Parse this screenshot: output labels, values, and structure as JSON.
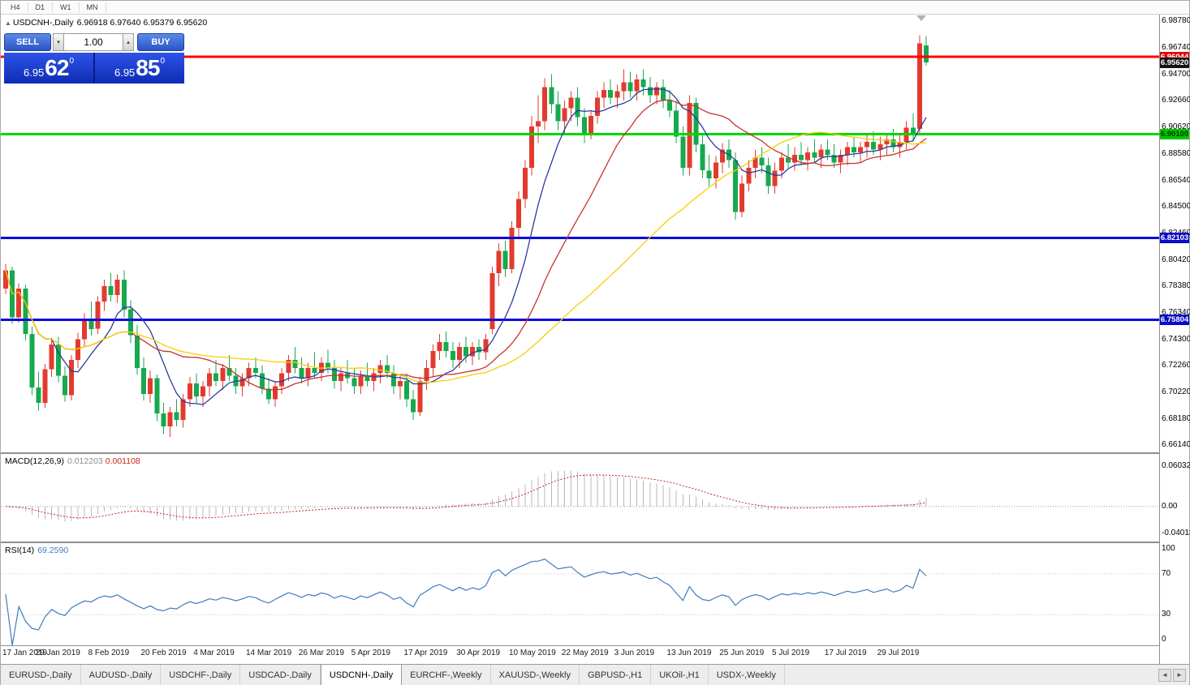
{
  "colors": {
    "up": "#e23b2e",
    "down": "#16a94f"
  },
  "period_bar": {
    "items": [
      "H4",
      "D1",
      "W1",
      "MN"
    ]
  },
  "chart_header": {
    "icon": "▲",
    "symbol": "USDCNH-,Daily",
    "ohlc": "6.96918 6.97640 6.95379 6.95620"
  },
  "trade_panel": {
    "sell_label": "SELL",
    "buy_label": "BUY",
    "volume": "1.00",
    "spin_down": "▾",
    "spin_up": "▴",
    "bid": {
      "prefix": "6.95",
      "big": "62",
      "sup": "0"
    },
    "ask": {
      "prefix": "6.95",
      "big": "85",
      "sup": "0"
    }
  },
  "chart_data": {
    "type": "candlestick",
    "symbol": "USDCNH-,Daily",
    "ohlc_header": {
      "open": "6.96918",
      "high": "6.97640",
      "low": "6.95379",
      "close": "6.95620"
    },
    "price_axis": {
      "min": 6.656,
      "max": 6.993,
      "ticks": [
        "6.98780",
        "6.96740",
        "6.94700",
        "6.92660",
        "6.90620",
        "6.88580",
        "6.86540",
        "6.84500",
        "6.82460",
        "6.80420",
        "6.78380",
        "6.76340",
        "6.74300",
        "6.72260",
        "6.70220",
        "6.68180",
        "6.66140"
      ]
    },
    "hlines": [
      {
        "price": 6.96044,
        "label": "6.96044",
        "color": "#ff0000",
        "badge": "#e80000",
        "text": "#ffffff",
        "width": 3
      },
      {
        "price": 6.901,
        "label": "6.90100",
        "color": "#00d800",
        "badge": "#00c800",
        "text": "#003300",
        "width": 3
      },
      {
        "price": 6.82103,
        "label": "6.82103",
        "color": "#0a0ae0",
        "badge": "#0a0ac8",
        "text": "#ffffff",
        "width": 3
      },
      {
        "price": 6.75804,
        "label": "6.75804",
        "color": "#0a0ae0",
        "badge": "#0a0ac8",
        "text": "#ffffff",
        "width": 3
      }
    ],
    "current_price": {
      "label": "6.95620",
      "value": 6.9562,
      "badge": "#141414",
      "text": "#ffffff"
    },
    "ma": [
      {
        "period": 8,
        "color": "#2c3ba0"
      },
      {
        "period": 20,
        "color": "#c83232"
      },
      {
        "period": 45,
        "color": "#f5d000"
      }
    ],
    "macd": {
      "name": "MACD(12,26,9)",
      "value1": "0.012203",
      "value2": "0.001108",
      "fast": 12,
      "slow": 26,
      "signal": 9,
      "range": [
        -0.052,
        0.078
      ],
      "axis": [
        {
          "text": "0.060329",
          "value": 0.060329
        },
        {
          "text": "0.00",
          "value": 0
        },
        {
          "text": "-0.040135",
          "value": -0.040135
        }
      ]
    },
    "rsi": {
      "name": "RSI(14)",
      "value": "69.2590",
      "period": 14,
      "levels": [
        70,
        30
      ],
      "axis": [
        {
          "text": "100",
          "value": 100
        },
        {
          "text": "70",
          "value": 70
        },
        {
          "text": "30",
          "value": 30
        },
        {
          "text": "0",
          "value": 0
        }
      ]
    },
    "x_labels": [
      {
        "i": 0,
        "t": "17 Jan 2019"
      },
      {
        "i": 8,
        "t": "29 Jan 2019"
      },
      {
        "i": 16,
        "t": "8 Feb 2019"
      },
      {
        "i": 24,
        "t": "20 Feb 2019"
      },
      {
        "i": 32,
        "t": "4 Mar 2019"
      },
      {
        "i": 40,
        "t": "14 Mar 2019"
      },
      {
        "i": 48,
        "t": "26 Mar 2019"
      },
      {
        "i": 56,
        "t": "5 Apr 2019"
      },
      {
        "i": 64,
        "t": "17 Apr 2019"
      },
      {
        "i": 72,
        "t": "30 Apr 2019"
      },
      {
        "i": 80,
        "t": "10 May 2019"
      },
      {
        "i": 88,
        "t": "22 May 2019"
      },
      {
        "i": 96,
        "t": "3 Jun 2019"
      },
      {
        "i": 104,
        "t": "13 Jun 2019"
      },
      {
        "i": 112,
        "t": "25 Jun 2019"
      },
      {
        "i": 120,
        "t": "5 Jul 2019"
      },
      {
        "i": 128,
        "t": "17 Jul 2019"
      },
      {
        "i": 136,
        "t": "29 Jul 2019"
      }
    ],
    "candles": [
      [
        6.782,
        6.801,
        6.778,
        6.796
      ],
      [
        6.796,
        6.799,
        6.755,
        6.76
      ],
      [
        6.76,
        6.786,
        6.756,
        6.782
      ],
      [
        6.782,
        6.785,
        6.742,
        6.747
      ],
      [
        6.747,
        6.753,
        6.7,
        6.706
      ],
      [
        6.706,
        6.718,
        6.688,
        6.694
      ],
      [
        6.694,
        6.724,
        6.69,
        6.72
      ],
      [
        6.72,
        6.744,
        6.714,
        6.739
      ],
      [
        6.739,
        6.745,
        6.71,
        6.715
      ],
      [
        6.715,
        6.722,
        6.695,
        6.7
      ],
      [
        6.7,
        6.731,
        6.696,
        6.727
      ],
      [
        6.727,
        6.748,
        6.721,
        6.743
      ],
      [
        6.743,
        6.763,
        6.738,
        6.758
      ],
      [
        6.758,
        6.772,
        6.746,
        6.751
      ],
      [
        6.751,
        6.776,
        6.747,
        6.772
      ],
      [
        6.772,
        6.789,
        6.765,
        6.784
      ],
      [
        6.784,
        6.794,
        6.772,
        6.777
      ],
      [
        6.777,
        6.793,
        6.771,
        6.789
      ],
      [
        6.789,
        6.796,
        6.76,
        6.766
      ],
      [
        6.766,
        6.773,
        6.74,
        6.746
      ],
      [
        6.746,
        6.754,
        6.716,
        6.721
      ],
      [
        6.721,
        6.729,
        6.696,
        6.701
      ],
      [
        6.701,
        6.719,
        6.694,
        6.713
      ],
      [
        6.713,
        6.716,
        6.68,
        6.686
      ],
      [
        6.686,
        6.694,
        6.67,
        6.676
      ],
      [
        6.676,
        6.691,
        6.668,
        6.687
      ],
      [
        6.687,
        6.697,
        6.676,
        6.681
      ],
      [
        6.681,
        6.701,
        6.675,
        6.697
      ],
      [
        6.697,
        6.714,
        6.691,
        6.709
      ],
      [
        6.709,
        6.717,
        6.694,
        6.699
      ],
      [
        6.699,
        6.711,
        6.691,
        6.707
      ],
      [
        6.707,
        6.721,
        6.699,
        6.717
      ],
      [
        6.717,
        6.727,
        6.707,
        6.711
      ],
      [
        6.711,
        6.724,
        6.704,
        6.721
      ],
      [
        6.721,
        6.731,
        6.711,
        6.715
      ],
      [
        6.715,
        6.721,
        6.701,
        6.707
      ],
      [
        6.707,
        6.717,
        6.699,
        6.713
      ],
      [
        6.713,
        6.725,
        6.707,
        6.721
      ],
      [
        6.721,
        6.729,
        6.713,
        6.717
      ],
      [
        6.717,
        6.723,
        6.701,
        6.705
      ],
      [
        6.705,
        6.713,
        6.693,
        6.697
      ],
      [
        6.697,
        6.711,
        6.691,
        6.707
      ],
      [
        6.707,
        6.721,
        6.701,
        6.717
      ],
      [
        6.717,
        6.731,
        6.711,
        6.727
      ],
      [
        6.727,
        6.737,
        6.717,
        6.721
      ],
      [
        6.721,
        6.729,
        6.709,
        6.713
      ],
      [
        6.713,
        6.725,
        6.707,
        6.721
      ],
      [
        6.721,
        6.733,
        6.713,
        6.717
      ],
      [
        6.717,
        6.729,
        6.711,
        6.725
      ],
      [
        6.725,
        6.735,
        6.717,
        6.721
      ],
      [
        6.721,
        6.727,
        6.705,
        6.711
      ],
      [
        6.711,
        6.721,
        6.703,
        6.717
      ],
      [
        6.717,
        6.727,
        6.709,
        6.713
      ],
      [
        6.713,
        6.721,
        6.701,
        6.707
      ],
      [
        6.707,
        6.719,
        6.701,
        6.715
      ],
      [
        6.715,
        6.725,
        6.707,
        6.711
      ],
      [
        6.711,
        6.721,
        6.703,
        6.717
      ],
      [
        6.717,
        6.727,
        6.709,
        6.723
      ],
      [
        6.723,
        6.731,
        6.713,
        6.717
      ],
      [
        6.717,
        6.723,
        6.701,
        6.707
      ],
      [
        6.707,
        6.715,
        6.697,
        6.711
      ],
      [
        6.711,
        6.717,
        6.691,
        6.697
      ],
      [
        6.697,
        6.704,
        6.681,
        6.687
      ],
      [
        6.687,
        6.714,
        6.684,
        6.711
      ],
      [
        6.711,
        6.727,
        6.704,
        6.721
      ],
      [
        6.721,
        6.739,
        6.714,
        6.734
      ],
      [
        6.734,
        6.747,
        6.727,
        6.741
      ],
      [
        6.741,
        6.749,
        6.729,
        6.734
      ],
      [
        6.734,
        6.741,
        6.721,
        6.727
      ],
      [
        6.727,
        6.741,
        6.721,
        6.737
      ],
      [
        6.737,
        6.745,
        6.725,
        6.73
      ],
      [
        6.73,
        6.741,
        6.723,
        6.737
      ],
      [
        6.737,
        6.743,
        6.727,
        6.733
      ],
      [
        6.733,
        6.747,
        6.727,
        6.743
      ],
      [
        6.751,
        6.799,
        6.747,
        6.794
      ],
      [
        6.794,
        6.817,
        6.784,
        6.811
      ],
      [
        6.811,
        6.819,
        6.791,
        6.797
      ],
      [
        6.797,
        6.834,
        6.794,
        6.829
      ],
      [
        6.829,
        6.857,
        6.821,
        6.851
      ],
      [
        6.851,
        6.881,
        6.844,
        6.875
      ],
      [
        6.875,
        6.915,
        6.869,
        6.907
      ],
      [
        6.907,
        6.931,
        6.894,
        6.911
      ],
      [
        6.911,
        6.944,
        6.904,
        6.937
      ],
      [
        6.937,
        6.947,
        6.917,
        6.924
      ],
      [
        6.924,
        6.934,
        6.904,
        6.911
      ],
      [
        6.911,
        6.927,
        6.901,
        6.921
      ],
      [
        6.921,
        6.934,
        6.911,
        6.929
      ],
      [
        6.929,
        6.937,
        6.907,
        6.914
      ],
      [
        6.914,
        6.921,
        6.894,
        6.901
      ],
      [
        6.901,
        6.919,
        6.897,
        6.915
      ],
      [
        6.915,
        6.934,
        6.909,
        6.929
      ],
      [
        6.929,
        6.941,
        6.921,
        6.935
      ],
      [
        6.935,
        6.943,
        6.924,
        6.929
      ],
      [
        6.929,
        6.939,
        6.921,
        6.934
      ],
      [
        6.934,
        6.951,
        6.927,
        6.941
      ],
      [
        6.941,
        6.949,
        6.929,
        6.934
      ],
      [
        6.934,
        6.947,
        6.927,
        6.943
      ],
      [
        6.943,
        6.951,
        6.931,
        6.937
      ],
      [
        6.937,
        6.945,
        6.925,
        6.931
      ],
      [
        6.931,
        6.941,
        6.924,
        6.937
      ],
      [
        6.937,
        6.943,
        6.921,
        6.927
      ],
      [
        6.927,
        6.935,
        6.914,
        6.919
      ],
      [
        6.919,
        6.927,
        6.894,
        6.899
      ],
      [
        6.899,
        6.907,
        6.869,
        6.875
      ],
      [
        6.875,
        6.931,
        6.869,
        6.925
      ],
      [
        6.925,
        6.929,
        6.887,
        6.893
      ],
      [
        6.893,
        6.901,
        6.867,
        6.873
      ],
      [
        6.873,
        6.885,
        6.861,
        6.867
      ],
      [
        6.867,
        6.884,
        6.859,
        6.879
      ],
      [
        6.879,
        6.894,
        6.871,
        6.889
      ],
      [
        6.889,
        6.897,
        6.875,
        6.881
      ],
      [
        6.881,
        6.887,
        6.835,
        6.841
      ],
      [
        6.841,
        6.869,
        6.837,
        6.863
      ],
      [
        6.863,
        6.881,
        6.857,
        6.875
      ],
      [
        6.875,
        6.889,
        6.867,
        6.883
      ],
      [
        6.883,
        6.891,
        6.871,
        6.877
      ],
      [
        6.877,
        6.883,
        6.855,
        6.861
      ],
      [
        6.861,
        6.879,
        6.855,
        6.873
      ],
      [
        6.873,
        6.887,
        6.867,
        6.883
      ],
      [
        6.883,
        6.893,
        6.875,
        6.879
      ],
      [
        6.879,
        6.891,
        6.873,
        6.885
      ],
      [
        6.885,
        6.895,
        6.877,
        6.881
      ],
      [
        6.881,
        6.891,
        6.873,
        6.887
      ],
      [
        6.887,
        6.897,
        6.879,
        6.883
      ],
      [
        6.883,
        6.893,
        6.875,
        6.889
      ],
      [
        6.889,
        6.897,
        6.881,
        6.885
      ],
      [
        6.885,
        6.893,
        6.875,
        6.879
      ],
      [
        6.879,
        6.889,
        6.871,
        6.885
      ],
      [
        6.885,
        6.895,
        6.877,
        6.891
      ],
      [
        6.891,
        6.899,
        6.883,
        6.887
      ],
      [
        6.887,
        6.895,
        6.879,
        6.891
      ],
      [
        6.891,
        6.901,
        6.883,
        6.895
      ],
      [
        6.895,
        6.903,
        6.885,
        6.889
      ],
      [
        6.889,
        6.899,
        6.881,
        6.893
      ],
      [
        6.893,
        6.901,
        6.885,
        6.897
      ],
      [
        6.897,
        6.905,
        6.887,
        6.891
      ],
      [
        6.891,
        6.901,
        6.883,
        6.895
      ],
      [
        6.895,
        6.911,
        6.889,
        6.906
      ],
      [
        6.906,
        6.917,
        6.895,
        6.901
      ],
      [
        6.905,
        6.977,
        6.901,
        6.971
      ],
      [
        6.9692,
        6.9764,
        6.9538,
        6.9562
      ]
    ]
  },
  "bottom_tabs": {
    "active_index": 4,
    "left_arrow": "◄",
    "right_arrow": "►",
    "tabs": [
      "EURUSD-,Daily",
      "AUDUSD-,Daily",
      "USDCHF-,Daily",
      "USDCAD-,Daily",
      "USDCNH-,Daily",
      "EURCHF-,Weekly",
      "XAUUSD-,Weekly",
      "GBPUSD-,H1",
      "UKOil-,H1",
      "USDX-,Weekly"
    ]
  }
}
